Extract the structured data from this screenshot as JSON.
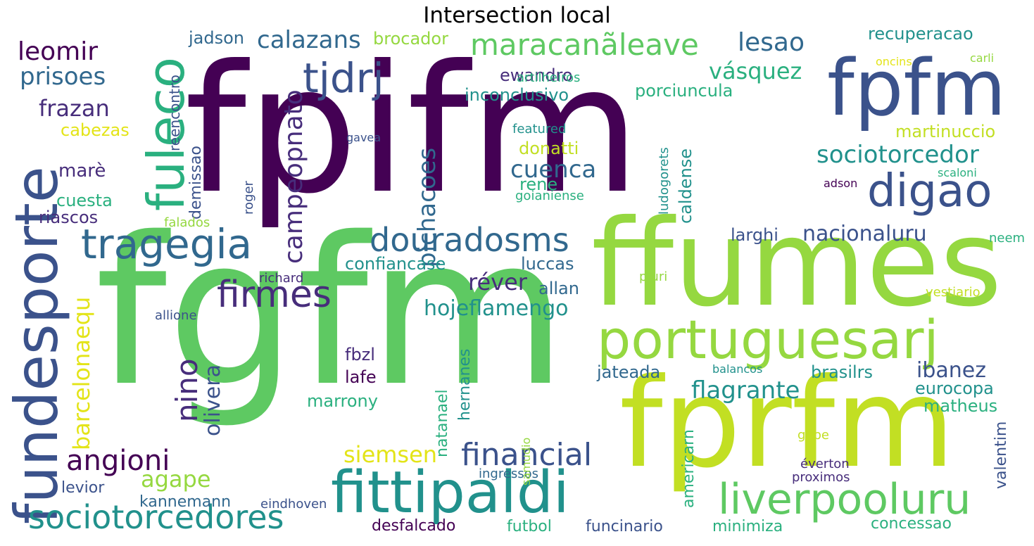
{
  "title": "Intersection local",
  "colors": {
    "deep_purple": "#440154",
    "purple": "#472d7b",
    "indigo": "#3b528b",
    "blue": "#31688e",
    "teal": "#21918c",
    "green_teal": "#2ab07f",
    "green": "#5ec962",
    "light_green": "#95d840",
    "yellow_green": "#c2df23",
    "yellow": "#e3e418"
  },
  "words": [
    {
      "text": "fpifm",
      "color": "#440154"
    },
    {
      "text": "fgfm",
      "color": "#5ec962"
    },
    {
      "text": "ffumes",
      "color": "#95d840"
    },
    {
      "text": "fprfm",
      "color": "#c2df23"
    },
    {
      "text": "fpfm",
      "color": "#3b528b"
    },
    {
      "text": "portuguesarj",
      "color": "#95d840"
    },
    {
      "text": "fittipaldi",
      "color": "#21918c"
    },
    {
      "text": "fundesporte",
      "color": "#3b528b"
    },
    {
      "text": "fuleco",
      "color": "#2ab07f"
    },
    {
      "text": "liverpooluru",
      "color": "#5ec962"
    },
    {
      "text": "tragegia",
      "color": "#31688e"
    },
    {
      "text": "digao",
      "color": "#3b528b"
    },
    {
      "text": "sociotorcedores",
      "color": "#21918c"
    },
    {
      "text": "tjdrj",
      "color": "#3b528b"
    },
    {
      "text": "douradosms",
      "color": "#31688e"
    },
    {
      "text": "firmes",
      "color": "#472d7b"
    },
    {
      "text": "maracanãleave",
      "color": "#5ec962"
    },
    {
      "text": "financial",
      "color": "#3b528b"
    },
    {
      "text": "angioni",
      "color": "#440154"
    },
    {
      "text": "sociotorcedor",
      "color": "#21918c"
    },
    {
      "text": "campeopnato",
      "color": "#472d7b"
    },
    {
      "text": "nino",
      "color": "#472d7b"
    },
    {
      "text": "pichacoes",
      "color": "#31688e"
    },
    {
      "text": "hojeflamengo",
      "color": "#21918c"
    },
    {
      "text": "barcelonaequ",
      "color": "#e3e418"
    },
    {
      "text": "leomir",
      "color": "#440154"
    },
    {
      "text": "calazans",
      "color": "#31688e"
    },
    {
      "text": "lesao",
      "color": "#31688e"
    },
    {
      "text": "prisoes",
      "color": "#31688e"
    },
    {
      "text": "frazan",
      "color": "#472d7b"
    },
    {
      "text": "vásquez",
      "color": "#2ab07f"
    },
    {
      "text": "cuenca",
      "color": "#31688e"
    },
    {
      "text": "flagrante",
      "color": "#21918c"
    },
    {
      "text": "réver",
      "color": "#472d7b"
    },
    {
      "text": "siemsen",
      "color": "#e3e418"
    },
    {
      "text": "olivera",
      "color": "#3b528b"
    },
    {
      "text": "nacionaluru",
      "color": "#3b528b"
    },
    {
      "text": "ibanez",
      "color": "#3b528b"
    },
    {
      "text": "agape",
      "color": "#95d840"
    },
    {
      "text": "recuperacao",
      "color": "#21918c"
    },
    {
      "text": "martinuccio",
      "color": "#c2df23"
    },
    {
      "text": "caldense",
      "color": "#21918c"
    },
    {
      "text": "brocador",
      "color": "#95d840"
    },
    {
      "text": "jadson",
      "color": "#31688e"
    },
    {
      "text": "ewandro",
      "color": "#472d7b"
    },
    {
      "text": "inconclusivo",
      "color": "#21918c"
    },
    {
      "text": "porciuncula",
      "color": "#2ab07f"
    },
    {
      "text": "donatti",
      "color": "#c2df23"
    },
    {
      "text": "marè",
      "color": "#472d7b"
    },
    {
      "text": "cuesta",
      "color": "#2ab07f"
    },
    {
      "text": "riascos",
      "color": "#472d7b"
    },
    {
      "text": "cabezas",
      "color": "#e3e418"
    },
    {
      "text": "reencontro",
      "color": "#3b528b"
    },
    {
      "text": "demissao",
      "color": "#3b528b"
    },
    {
      "text": "rene",
      "color": "#2ab07f"
    },
    {
      "text": "larghi",
      "color": "#3b528b"
    },
    {
      "text": "confiancase",
      "color": "#21918c"
    },
    {
      "text": "luccas",
      "color": "#31688e"
    },
    {
      "text": "allan",
      "color": "#31688e"
    },
    {
      "text": "fbzl",
      "color": "#472d7b"
    },
    {
      "text": "lafe",
      "color": "#440154"
    },
    {
      "text": "marrony",
      "color": "#2ab07f"
    },
    {
      "text": "jateada",
      "color": "#31688e"
    },
    {
      "text": "brasilrs",
      "color": "#21918c"
    },
    {
      "text": "eurocopa",
      "color": "#21918c"
    },
    {
      "text": "matheus",
      "color": "#2ab07f"
    },
    {
      "text": "hernanes",
      "color": "#21918c"
    },
    {
      "text": "natanael",
      "color": "#2ab07f"
    },
    {
      "text": "americarn",
      "color": "#2ab07f"
    },
    {
      "text": "valentim",
      "color": "#3b528b"
    },
    {
      "text": "kannemann",
      "color": "#31688e"
    },
    {
      "text": "levior",
      "color": "#3b528b"
    },
    {
      "text": "desfalcado",
      "color": "#440154"
    },
    {
      "text": "futbol",
      "color": "#2ab07f"
    },
    {
      "text": "funcinario",
      "color": "#3b528b"
    },
    {
      "text": "minimiza",
      "color": "#2ab07f"
    },
    {
      "text": "concessao",
      "color": "#2ab07f"
    },
    {
      "text": "eindhoven",
      "color": "#3b528b"
    },
    {
      "text": "ingressos",
      "color": "#31688e"
    },
    {
      "text": "proximos",
      "color": "#472d7b"
    },
    {
      "text": "éverton",
      "color": "#472d7b"
    },
    {
      "text": "gepe",
      "color": "#c2df23"
    },
    {
      "text": "samudio",
      "color": "#95d840"
    },
    {
      "text": "balancos",
      "color": "#21918c"
    },
    {
      "text": "allione",
      "color": "#3b528b"
    },
    {
      "text": "richard",
      "color": "#472d7b"
    },
    {
      "text": "pluri",
      "color": "#95d840"
    },
    {
      "text": "vestiario",
      "color": "#c2df23"
    },
    {
      "text": "neem",
      "color": "#2ab07f"
    },
    {
      "text": "falados",
      "color": "#95d840"
    },
    {
      "text": "roger",
      "color": "#3b528b"
    },
    {
      "text": "gavea",
      "color": "#3b528b"
    },
    {
      "text": "featured",
      "color": "#21918c"
    },
    {
      "text": "goianiense",
      "color": "#2ab07f"
    },
    {
      "text": "ludogorets",
      "color": "#21918c"
    },
    {
      "text": "artilheiros",
      "color": "#2ab07f"
    },
    {
      "text": "oncins",
      "color": "#e3e418"
    },
    {
      "text": "carli",
      "color": "#95d840"
    },
    {
      "text": "scaloni",
      "color": "#2ab07f"
    },
    {
      "text": "adson",
      "color": "#440154"
    }
  ]
}
